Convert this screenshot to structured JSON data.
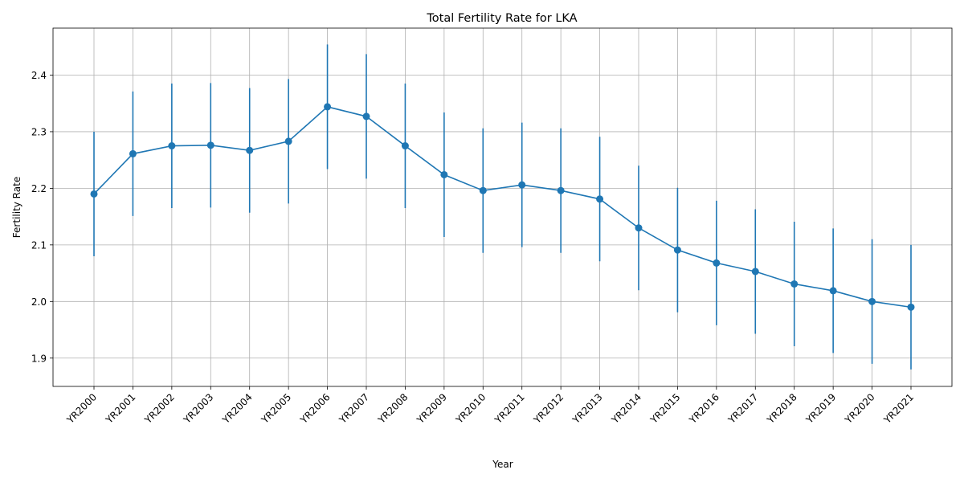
{
  "chart_data": {
    "type": "line",
    "title": "Total Fertility Rate for LKA",
    "xlabel": "Year",
    "ylabel": "Fertility Rate",
    "categories": [
      "YR2000",
      "YR2001",
      "YR2002",
      "YR2003",
      "YR2004",
      "YR2005",
      "YR2006",
      "YR2007",
      "YR2008",
      "YR2009",
      "YR2010",
      "YR2011",
      "YR2012",
      "YR2013",
      "YR2014",
      "YR2015",
      "YR2016",
      "YR2017",
      "YR2018",
      "YR2019",
      "YR2020",
      "YR2021"
    ],
    "series": [
      {
        "values": [
          2.19,
          2.261,
          2.275,
          2.276,
          2.267,
          2.283,
          2.344,
          2.327,
          2.275,
          2.224,
          2.196,
          2.206,
          2.196,
          2.181,
          2.13,
          2.091,
          2.068,
          2.053,
          2.031,
          2.019,
          2.0,
          1.99
        ],
        "error": [
          0.11,
          0.11,
          0.11,
          0.11,
          0.11,
          0.11,
          0.11,
          0.11,
          0.11,
          0.11,
          0.11,
          0.11,
          0.11,
          0.11,
          0.11,
          0.11,
          0.11,
          0.11,
          0.11,
          0.11,
          0.11,
          0.11
        ],
        "color": "#1f77b4"
      }
    ],
    "ylim": [
      1.85,
      2.483
    ],
    "yticks": [
      1.9,
      2.0,
      2.1,
      2.2,
      2.3,
      2.4
    ],
    "ytick_labels": [
      "1.9",
      "2.0",
      "2.1",
      "2.2",
      "2.3",
      "2.4"
    ],
    "grid": true,
    "markers": true
  }
}
